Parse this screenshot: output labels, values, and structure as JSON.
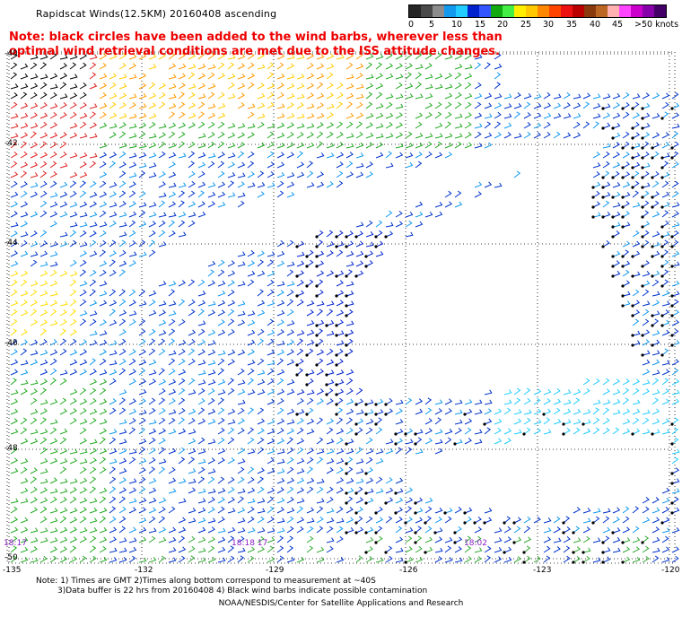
{
  "title": "Rapidscat Winds(12.5KM) 20160408 ascending",
  "note": "Note: black circles have been added to the wind barbs, wherever less than optimal wind retrieval conditions are met due to the ISS attitude changes.",
  "colorbar": {
    "labels": [
      "0",
      "5",
      "10",
      "15",
      "20",
      "25",
      "30",
      "35",
      "40",
      "45",
      ">50 knots"
    ],
    "colors": [
      "#262626",
      "#4a4a4a",
      "#8c8c8c",
      "#1199ee",
      "#22ccff",
      "#0022cc",
      "#3355ff",
      "#11aa11",
      "#44ee44",
      "#ffee00",
      "#ffc800",
      "#ff8800",
      "#ff4400",
      "#ee1111",
      "#bb0000",
      "#8b3a0e",
      "#bb6622",
      "#ffb0b0",
      "#ff44ff",
      "#cc00cc",
      "#8800aa",
      "#440066"
    ]
  },
  "lat_labels": [
    "-40",
    "-42",
    "-44",
    "-46",
    "-48",
    "-50"
  ],
  "lon_labels": [
    "-135",
    "-132",
    "-129",
    "-126",
    "-123",
    "-120"
  ],
  "time_labels": [
    "18:17",
    "18:18 17",
    "18:02"
  ],
  "footer": {
    "line1": "Note: 1) Times are GMT 2)Times along bottom correspond to measurement at ~40S",
    "line2": "3)Data buffer is 22 hrs from 20160408 4) Black wind barbs indicate possible contamination",
    "credit": "NOAA/NESDIS/Center for Satellite Applications and Research"
  }
}
